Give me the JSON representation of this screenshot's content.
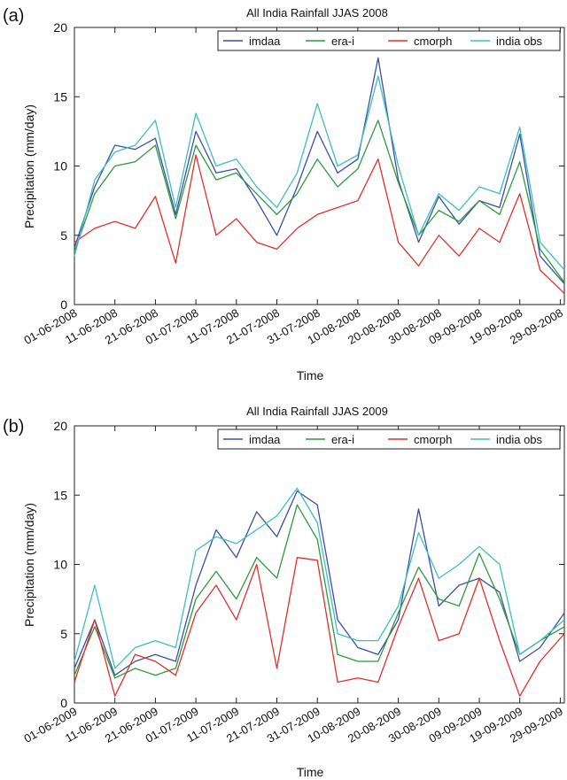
{
  "chart_data": [
    {
      "type": "line",
      "panel_label": "(a)",
      "title": "All India Rainfall JJAS 2008",
      "xlabel": "Time",
      "ylabel": "Precipitation (mm/day)",
      "ylim": [
        0,
        20
      ],
      "yticks": [
        0,
        5,
        10,
        15,
        20
      ],
      "xlim": [
        "2008-06-01",
        "2008-09-30"
      ],
      "xticks": [
        {
          "date": "2008-06-01",
          "label": "01-06-2008"
        },
        {
          "date": "2008-06-11",
          "label": "11-06-2008"
        },
        {
          "date": "2008-06-21",
          "label": "21-06-2008"
        },
        {
          "date": "2008-07-01",
          "label": "01-07-2008"
        },
        {
          "date": "2008-07-11",
          "label": "11-07-2008"
        },
        {
          "date": "2008-07-21",
          "label": "21-07-2008"
        },
        {
          "date": "2008-07-31",
          "label": "31-07-2008"
        },
        {
          "date": "2008-08-10",
          "label": "10-08-2008"
        },
        {
          "date": "2008-08-20",
          "label": "20-08-2008"
        },
        {
          "date": "2008-08-30",
          "label": "30-08-2008"
        },
        {
          "date": "2008-09-09",
          "label": "09-09-2008"
        },
        {
          "date": "2008-09-19",
          "label": "19-09-2008"
        },
        {
          "date": "2008-09-29",
          "label": "29-09-2008"
        }
      ],
      "grid": false,
      "legend_position": "top-right",
      "series": [
        {
          "name": "imdaa",
          "color": "#3b4fa8",
          "x": [
            "2008-06-01",
            "2008-06-06",
            "2008-06-11",
            "2008-06-16",
            "2008-06-21",
            "2008-06-26",
            "2008-07-01",
            "2008-07-06",
            "2008-07-11",
            "2008-07-16",
            "2008-07-21",
            "2008-07-26",
            "2008-07-31",
            "2008-08-05",
            "2008-08-10",
            "2008-08-15",
            "2008-08-20",
            "2008-08-25",
            "2008-08-30",
            "2008-09-04",
            "2008-09-09",
            "2008-09-14",
            "2008-09-19",
            "2008-09-24",
            "2008-09-30"
          ],
          "values": [
            4.1,
            8.5,
            11.5,
            11.2,
            12.0,
            6.5,
            12.5,
            9.5,
            9.8,
            7.5,
            5.0,
            8.5,
            12.5,
            9.5,
            10.5,
            17.8,
            9.0,
            4.5,
            7.8,
            5.8,
            7.5,
            7.0,
            12.3,
            3.5,
            1.5
          ]
        },
        {
          "name": "era-i",
          "color": "#2e9a3e",
          "x": [
            "2008-06-01",
            "2008-06-06",
            "2008-06-11",
            "2008-06-16",
            "2008-06-21",
            "2008-06-26",
            "2008-07-01",
            "2008-07-06",
            "2008-07-11",
            "2008-07-16",
            "2008-07-21",
            "2008-07-26",
            "2008-07-31",
            "2008-08-05",
            "2008-08-10",
            "2008-08-15",
            "2008-08-20",
            "2008-08-25",
            "2008-08-30",
            "2008-09-04",
            "2008-09-09",
            "2008-09-14",
            "2008-09-19",
            "2008-09-24",
            "2008-09-30"
          ],
          "values": [
            3.8,
            8.0,
            10.0,
            10.3,
            11.5,
            6.2,
            11.5,
            9.0,
            9.5,
            8.0,
            6.5,
            8.0,
            10.5,
            8.5,
            9.8,
            13.3,
            8.8,
            5.0,
            6.8,
            6.0,
            7.5,
            6.5,
            10.3,
            4.0,
            1.6
          ]
        },
        {
          "name": "cmorph",
          "color": "#e0302c",
          "x": [
            "2008-06-01",
            "2008-06-06",
            "2008-06-11",
            "2008-06-16",
            "2008-06-21",
            "2008-06-26",
            "2008-07-01",
            "2008-07-06",
            "2008-07-11",
            "2008-07-16",
            "2008-07-21",
            "2008-07-26",
            "2008-07-31",
            "2008-08-05",
            "2008-08-10",
            "2008-08-15",
            "2008-08-20",
            "2008-08-25",
            "2008-08-30",
            "2008-09-04",
            "2008-09-09",
            "2008-09-14",
            "2008-09-19",
            "2008-09-24",
            "2008-09-30"
          ],
          "values": [
            4.5,
            5.5,
            6.0,
            5.5,
            7.8,
            3.0,
            10.8,
            5.0,
            6.2,
            4.5,
            4.0,
            5.5,
            6.5,
            7.0,
            7.5,
            10.5,
            4.5,
            2.8,
            5.0,
            3.5,
            5.5,
            4.5,
            8.0,
            2.5,
            0.8
          ]
        },
        {
          "name": "india obs",
          "color": "#3ebec0",
          "x": [
            "2008-06-01",
            "2008-06-06",
            "2008-06-11",
            "2008-06-16",
            "2008-06-21",
            "2008-06-26",
            "2008-07-01",
            "2008-07-06",
            "2008-07-11",
            "2008-07-16",
            "2008-07-21",
            "2008-07-26",
            "2008-07-31",
            "2008-08-05",
            "2008-08-10",
            "2008-08-15",
            "2008-08-20",
            "2008-08-25",
            "2008-08-30",
            "2008-09-04",
            "2008-09-09",
            "2008-09-14",
            "2008-09-19",
            "2008-09-24",
            "2008-09-30"
          ],
          "values": [
            3.5,
            9.0,
            11.0,
            11.5,
            13.3,
            7.0,
            13.8,
            10.0,
            10.5,
            8.5,
            7.0,
            9.5,
            14.5,
            10.0,
            10.8,
            16.5,
            10.0,
            5.0,
            8.0,
            6.8,
            8.5,
            8.0,
            12.8,
            4.5,
            2.5
          ]
        }
      ]
    },
    {
      "type": "line",
      "panel_label": "(b)",
      "title": "All India Rainfall JJAS 2009",
      "xlabel": "Time",
      "ylabel": "Precipitation (mm/day)",
      "ylim": [
        0,
        20
      ],
      "yticks": [
        0,
        5,
        10,
        15,
        20
      ],
      "xlim": [
        "2009-06-01",
        "2009-09-30"
      ],
      "xticks": [
        {
          "date": "2009-06-01",
          "label": "01-06-2009"
        },
        {
          "date": "2009-06-11",
          "label": "11-06-2009"
        },
        {
          "date": "2009-06-21",
          "label": "21-06-2009"
        },
        {
          "date": "2009-07-01",
          "label": "01-07-2009"
        },
        {
          "date": "2009-07-11",
          "label": "11-07-2009"
        },
        {
          "date": "2009-07-21",
          "label": "21-07-2009"
        },
        {
          "date": "2009-07-31",
          "label": "31-07-2009"
        },
        {
          "date": "2009-08-10",
          "label": "10-08-2009"
        },
        {
          "date": "2009-08-20",
          "label": "20-08-2009"
        },
        {
          "date": "2009-08-30",
          "label": "30-08-2009"
        },
        {
          "date": "2009-09-09",
          "label": "09-09-2009"
        },
        {
          "date": "2009-09-19",
          "label": "19-09-2009"
        },
        {
          "date": "2009-09-29",
          "label": "29-09-2009"
        }
      ],
      "grid": false,
      "legend_position": "top-right",
      "series": [
        {
          "name": "imdaa",
          "color": "#3b4fa8",
          "x": [
            "2009-06-01",
            "2009-06-06",
            "2009-06-11",
            "2009-06-16",
            "2009-06-21",
            "2009-06-26",
            "2009-07-01",
            "2009-07-06",
            "2009-07-11",
            "2009-07-16",
            "2009-07-21",
            "2009-07-26",
            "2009-07-31",
            "2009-08-05",
            "2009-08-10",
            "2009-08-15",
            "2009-08-20",
            "2009-08-25",
            "2009-08-30",
            "2009-09-04",
            "2009-09-09",
            "2009-09-14",
            "2009-09-19",
            "2009-09-24",
            "2009-09-30"
          ],
          "values": [
            2.5,
            6.0,
            2.0,
            3.0,
            3.5,
            3.0,
            8.5,
            12.5,
            10.5,
            13.8,
            12.0,
            15.3,
            14.3,
            6.0,
            4.0,
            3.5,
            6.0,
            14.0,
            7.0,
            8.5,
            9.0,
            8.0,
            3.0,
            4.0,
            6.5
          ]
        },
        {
          "name": "era-i",
          "color": "#2e9a3e",
          "x": [
            "2009-06-01",
            "2009-06-06",
            "2009-06-11",
            "2009-06-16",
            "2009-06-21",
            "2009-06-26",
            "2009-07-01",
            "2009-07-06",
            "2009-07-11",
            "2009-07-16",
            "2009-07-21",
            "2009-07-26",
            "2009-07-31",
            "2009-08-05",
            "2009-08-10",
            "2009-08-15",
            "2009-08-20",
            "2009-08-25",
            "2009-08-30",
            "2009-09-04",
            "2009-09-09",
            "2009-09-14",
            "2009-09-19",
            "2009-09-24",
            "2009-09-30"
          ],
          "values": [
            2.0,
            5.5,
            1.8,
            2.5,
            2.0,
            2.5,
            7.5,
            9.5,
            7.5,
            10.5,
            9.0,
            14.3,
            11.8,
            3.5,
            3.0,
            3.0,
            6.5,
            9.8,
            7.5,
            7.0,
            10.8,
            7.5,
            3.5,
            4.5,
            5.5
          ]
        },
        {
          "name": "cmorph",
          "color": "#e0302c",
          "x": [
            "2009-06-01",
            "2009-06-06",
            "2009-06-11",
            "2009-06-16",
            "2009-06-21",
            "2009-06-26",
            "2009-07-01",
            "2009-07-06",
            "2009-07-11",
            "2009-07-16",
            "2009-07-21",
            "2009-07-26",
            "2009-07-31",
            "2009-08-05",
            "2009-08-10",
            "2009-08-15",
            "2009-08-20",
            "2009-08-25",
            "2009-08-30",
            "2009-09-04",
            "2009-09-09",
            "2009-09-14",
            "2009-09-19",
            "2009-09-24",
            "2009-09-30"
          ],
          "values": [
            1.5,
            6.0,
            0.5,
            3.5,
            3.0,
            2.0,
            6.5,
            8.5,
            6.0,
            10.0,
            2.5,
            10.5,
            10.3,
            1.5,
            1.8,
            1.5,
            5.5,
            9.0,
            4.5,
            5.0,
            9.0,
            4.5,
            0.5,
            3.0,
            5.0
          ]
        },
        {
          "name": "india obs",
          "color": "#3ebec0",
          "x": [
            "2009-06-01",
            "2009-06-06",
            "2009-06-11",
            "2009-06-16",
            "2009-06-21",
            "2009-06-26",
            "2009-07-01",
            "2009-07-06",
            "2009-07-11",
            "2009-07-16",
            "2009-07-21",
            "2009-07-26",
            "2009-07-31",
            "2009-08-05",
            "2009-08-10",
            "2009-08-15",
            "2009-08-20",
            "2009-08-25",
            "2009-08-30",
            "2009-09-04",
            "2009-09-09",
            "2009-09-14",
            "2009-09-19",
            "2009-09-24",
            "2009-09-30"
          ],
          "values": [
            3.0,
            8.5,
            2.5,
            4.0,
            4.5,
            4.0,
            11.0,
            12.0,
            11.5,
            12.5,
            13.5,
            15.5,
            13.0,
            5.0,
            4.5,
            4.5,
            7.0,
            12.3,
            9.0,
            10.0,
            11.3,
            10.0,
            3.5,
            4.5,
            6.0
          ]
        }
      ]
    }
  ]
}
